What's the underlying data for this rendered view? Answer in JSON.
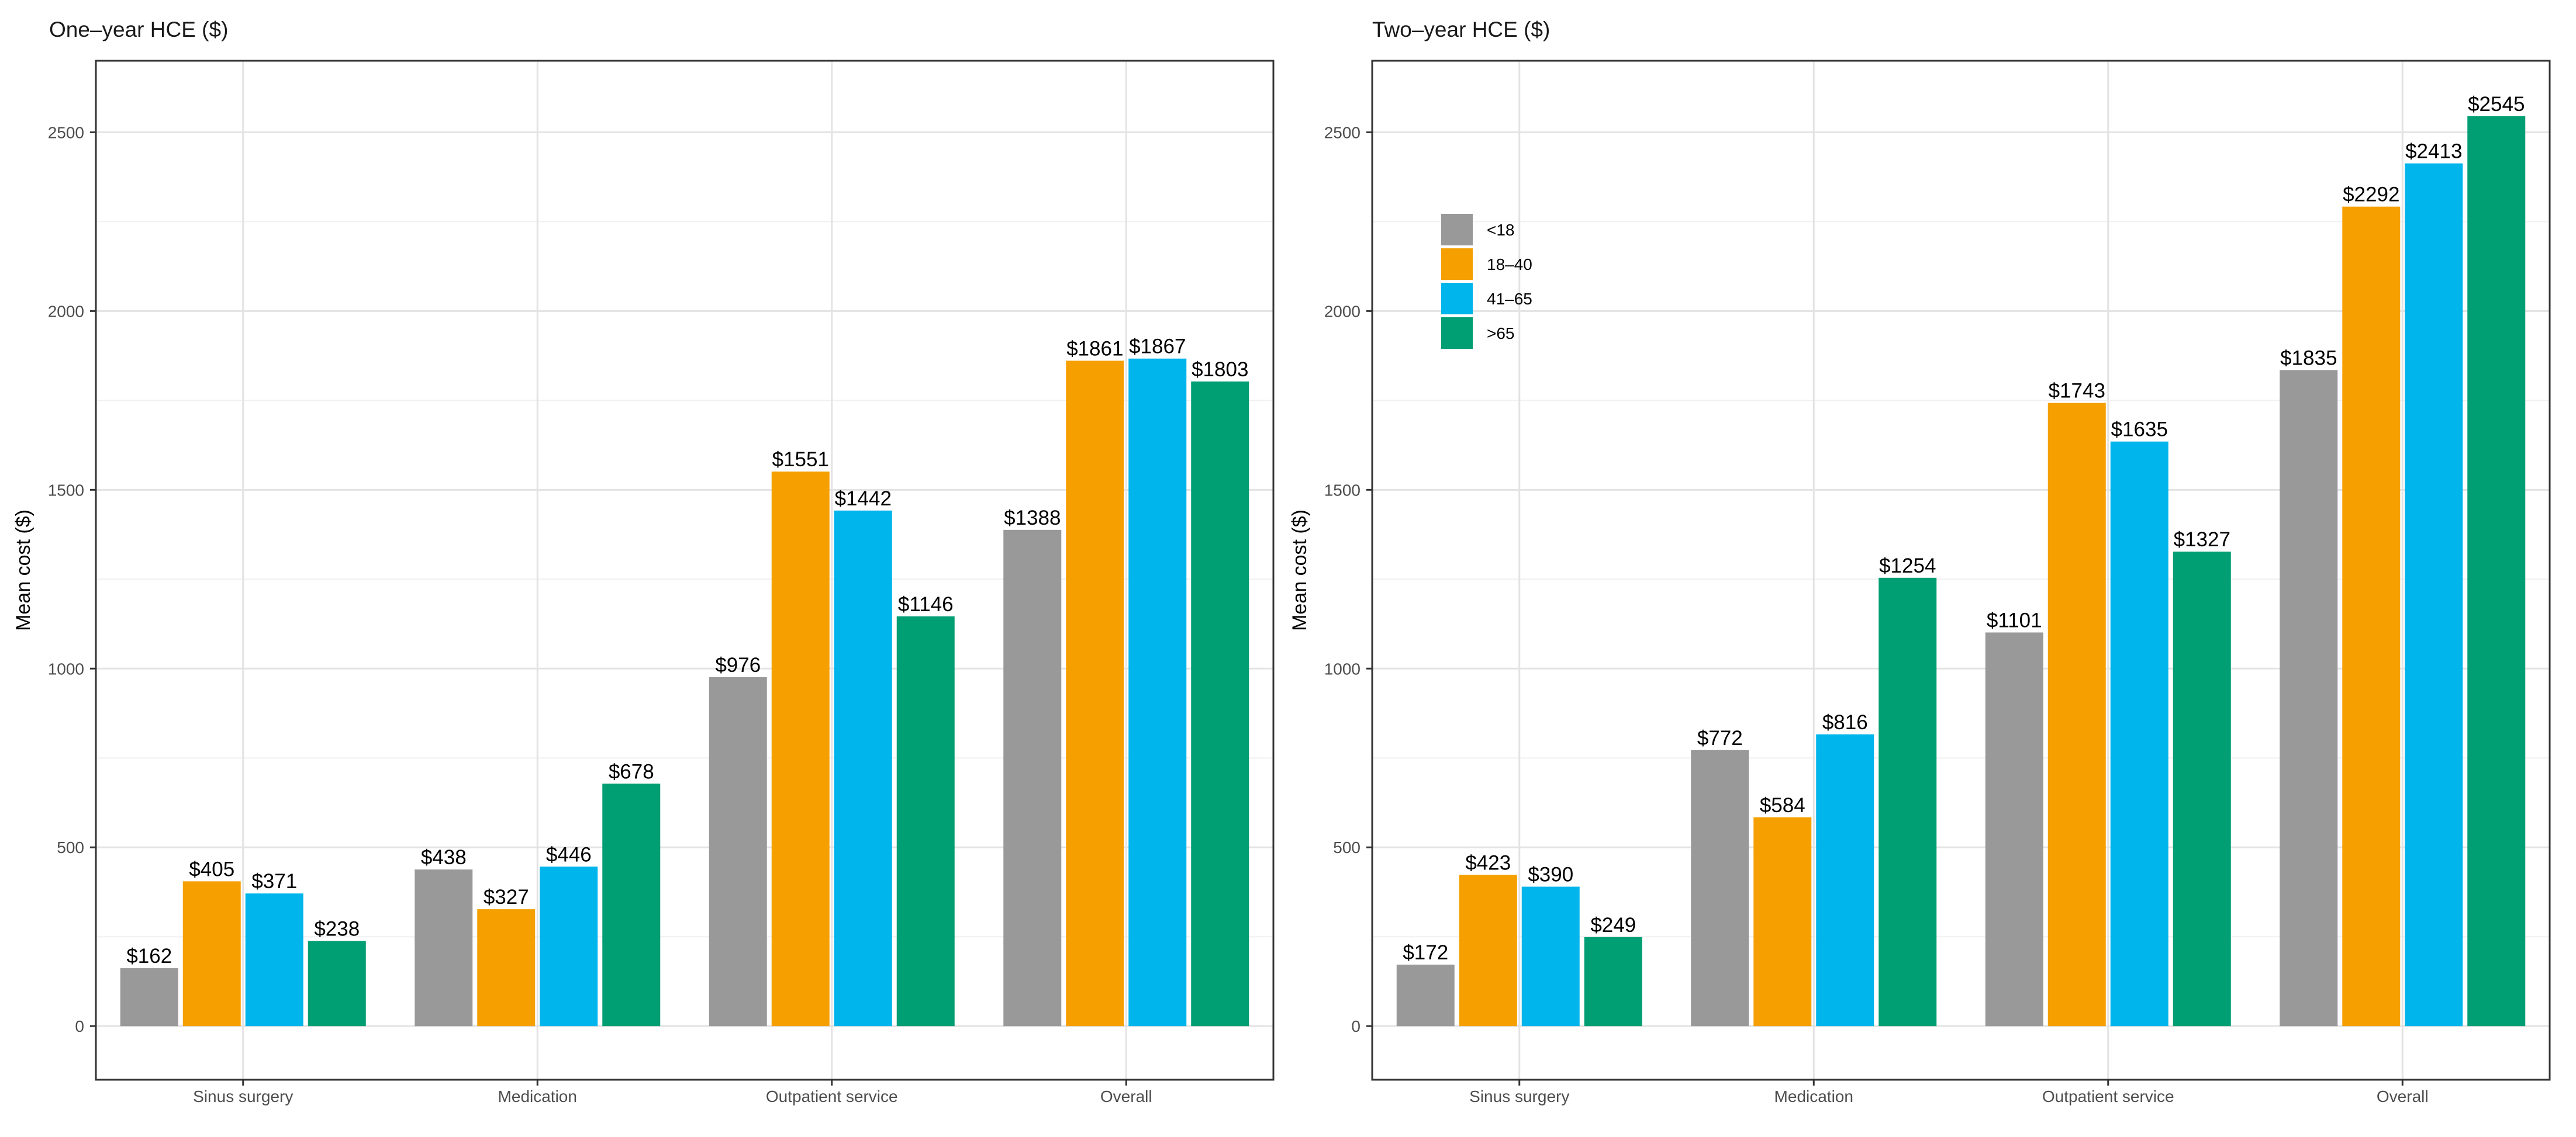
{
  "chart_data": [
    {
      "type": "bar",
      "title": "One–year HCE ($)",
      "ylabel": "Mean cost ($)",
      "xlabel": "",
      "ylim": [
        -150,
        2700
      ],
      "yticks": [
        0,
        500,
        1000,
        1500,
        2000,
        2500
      ],
      "grid": true,
      "legend": "none",
      "value_prefix": "$",
      "categories": [
        "Sinus surgery",
        "Medication",
        "Outpatient service",
        "Overall"
      ],
      "series": [
        {
          "name": "<18",
          "color": "#999999",
          "values": [
            162,
            438,
            976,
            1388
          ]
        },
        {
          "name": "18–40",
          "color": "#F5A000",
          "values": [
            405,
            327,
            1551,
            1861
          ]
        },
        {
          "name": "41–65",
          "color": "#00B5EB",
          "values": [
            371,
            446,
            1442,
            1867
          ]
        },
        {
          "name": ">65",
          "color": "#009E73",
          "values": [
            238,
            678,
            1146,
            1803
          ]
        }
      ]
    },
    {
      "type": "bar",
      "title": "Two–year HCE ($)",
      "ylabel": "Mean cost ($)",
      "xlabel": "",
      "ylim": [
        -150,
        2700
      ],
      "yticks": [
        0,
        500,
        1000,
        1500,
        2000,
        2500
      ],
      "grid": true,
      "legend": "top-left",
      "value_prefix": "$",
      "categories": [
        "Sinus surgery",
        "Medication",
        "Outpatient service",
        "Overall"
      ],
      "series": [
        {
          "name": "<18",
          "color": "#999999",
          "values": [
            172,
            772,
            1101,
            1835
          ]
        },
        {
          "name": "18–40",
          "color": "#F5A000",
          "values": [
            423,
            584,
            1743,
            2292
          ]
        },
        {
          "name": "41–65",
          "color": "#00B5EB",
          "values": [
            390,
            816,
            1635,
            2413
          ]
        },
        {
          "name": ">65",
          "color": "#009E73",
          "values": [
            249,
            1254,
            1327,
            2545
          ]
        }
      ]
    }
  ]
}
